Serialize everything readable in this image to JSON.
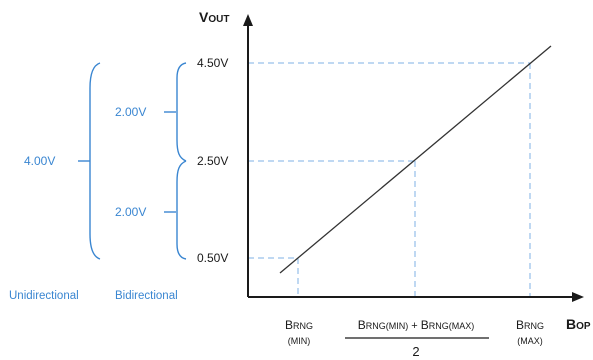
{
  "axes": {
    "y_label_main": "V",
    "y_label_sub": "OUT",
    "x_label_main": "B",
    "x_label_sub": "OP"
  },
  "y_ticks": {
    "v450": "4.50V",
    "v250": "2.50V",
    "v050": "0.50V"
  },
  "x_ticks": {
    "min_main": "B",
    "min_sub": "RNG",
    "min_paren": "(MIN)",
    "mid_b1": "B",
    "mid_s1": "RNG(MIN)",
    "mid_plus": " + ",
    "mid_b2": "B",
    "mid_s2": "RNG(MAX)",
    "mid_denominator": "2",
    "max_main": "B",
    "max_sub": "RNG",
    "max_paren": "(MAX)"
  },
  "ranges": {
    "unidirectional_value": "4.00V",
    "bidirectional_upper": "2.00V",
    "bidirectional_lower": "2.00V",
    "unidirectional_label": "Unidirectional",
    "bidirectional_label": "Bidirectional"
  },
  "colors": {
    "axis": "#1a1a1a",
    "line": "#333333",
    "accent": "#3a86d1",
    "guide": "#7fb2e5"
  }
}
